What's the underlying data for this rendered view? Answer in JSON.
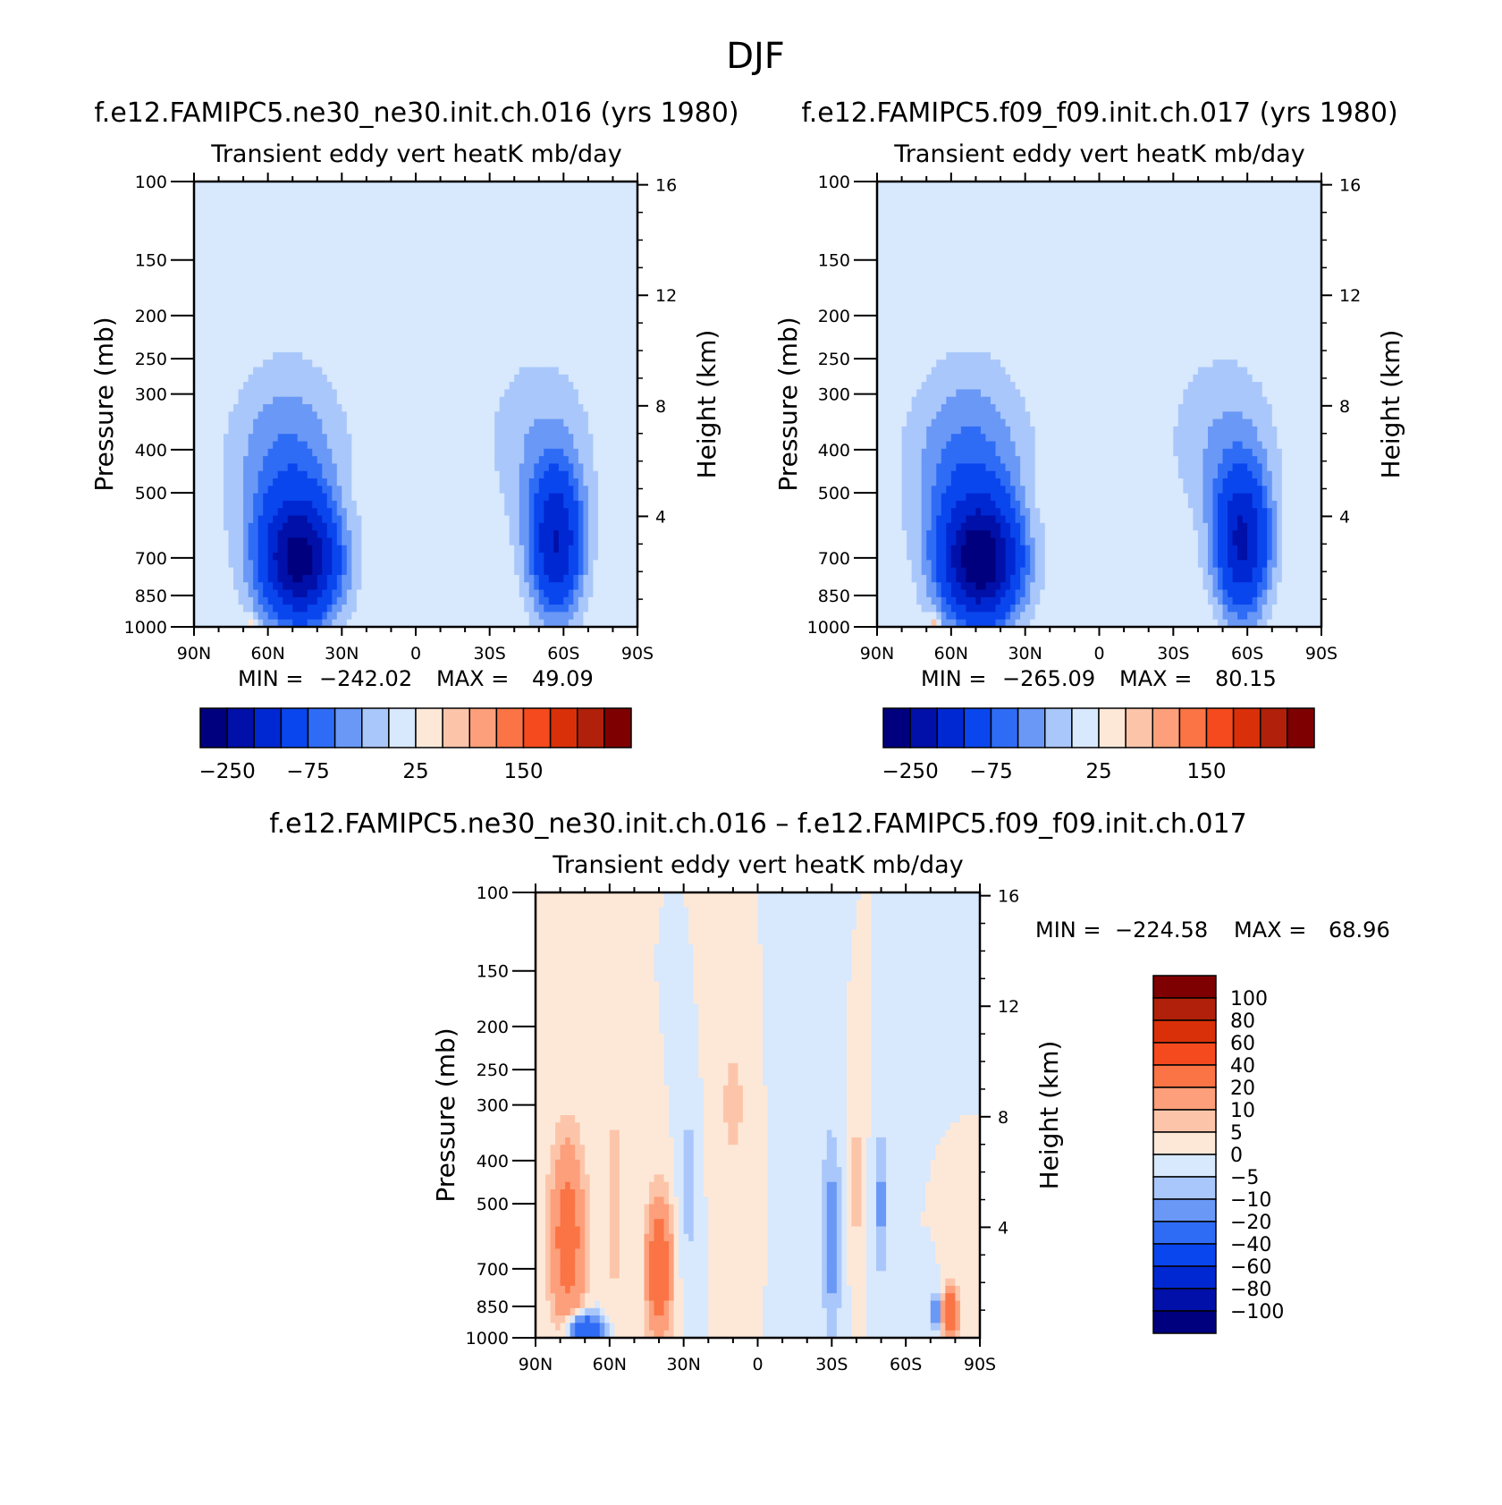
{
  "figure": {
    "title": "DJF"
  },
  "chart_data": [
    {
      "type": "heatmap",
      "title": "f.e12.FAMIPC5.ne30_ne30.init.ch.016 (yrs 1980)",
      "subtitle": "Transient eddy vert heatK mb/day",
      "xlabel": "",
      "ylabel": "Pressure (mb)",
      "y2label": "Height (km)",
      "x_ticks": [
        "90N",
        "60N",
        "30N",
        "0",
        "30S",
        "60S",
        "90S"
      ],
      "x_values": [
        90,
        60,
        30,
        0,
        -30,
        -60,
        -90
      ],
      "y_ticks": [
        100,
        150,
        200,
        250,
        300,
        400,
        500,
        700,
        850,
        1000
      ],
      "y2_ticks": [
        16,
        12,
        8,
        4
      ],
      "ylim": [
        1000,
        100
      ],
      "stats": {
        "min_label": "MIN =",
        "min": "-242.02",
        "max_label": "MAX =",
        "max": "49.09"
      },
      "colorbar": {
        "orientation": "horizontal",
        "tick_labels": [
          "-250",
          "-75",
          "25",
          "150"
        ],
        "colors": [
          "#00007f",
          "#0010a8",
          "#0028d2",
          "#0a46ee",
          "#2f6cf6",
          "#6a98f6",
          "#a9c7fa",
          "#d8e8fd",
          "#fde8d8",
          "#fcc5aa",
          "#fc9f7a",
          "#fa7446",
          "#f54a1e",
          "#d9300a",
          "#b0200a",
          "#7f0000"
        ]
      },
      "features": [
        {
          "lat": 47,
          "p": 720,
          "value": -242,
          "wlat": 16,
          "wlp": 0.32
        },
        {
          "lat": 52,
          "p": 440,
          "value": -80,
          "wlat": 24,
          "wlp": 0.55
        },
        {
          "lat": -57,
          "p": 650,
          "value": -190,
          "wlat": 11,
          "wlp": 0.38
        },
        {
          "lat": -50,
          "p": 380,
          "value": -45,
          "wlat": 24,
          "wlp": 0.5
        },
        {
          "lat": 27,
          "p": 550,
          "value": 10,
          "wlat": 5,
          "wlp": 0.22
        },
        {
          "lat": 66,
          "p": 985,
          "value": 40,
          "wlat": 2,
          "wlp": 0.04
        }
      ]
    },
    {
      "type": "heatmap",
      "title": "f.e12.FAMIPC5.f09_f09.init.ch.017 (yrs 1980)",
      "subtitle": "Transient eddy vert heatK mb/day",
      "xlabel": "",
      "ylabel": "Pressure (mb)",
      "y2label": "Height (km)",
      "x_ticks": [
        "90N",
        "60N",
        "30N",
        "0",
        "30S",
        "60S",
        "90S"
      ],
      "x_values": [
        90,
        60,
        30,
        0,
        -30,
        -60,
        -90
      ],
      "y_ticks": [
        100,
        150,
        200,
        250,
        300,
        400,
        500,
        700,
        850,
        1000
      ],
      "y2_ticks": [
        16,
        12,
        8,
        4
      ],
      "ylim": [
        1000,
        100
      ],
      "stats": {
        "min_label": "MIN =",
        "min": "-265.09",
        "max_label": "MAX =",
        "max": "80.15"
      },
      "colorbar": {
        "orientation": "horizontal",
        "tick_labels": [
          "-250",
          "-75",
          "25",
          "150"
        ],
        "colors": [
          "#00007f",
          "#0010a8",
          "#0028d2",
          "#0a46ee",
          "#2f6cf6",
          "#6a98f6",
          "#a9c7fa",
          "#d8e8fd",
          "#fde8d8",
          "#fcc5aa",
          "#fc9f7a",
          "#fa7446",
          "#f54a1e",
          "#d9300a",
          "#b0200a",
          "#7f0000"
        ]
      },
      "features": [
        {
          "lat": 48,
          "p": 720,
          "value": -265,
          "wlat": 16,
          "wlp": 0.32
        },
        {
          "lat": 53,
          "p": 440,
          "value": -85,
          "wlat": 25,
          "wlp": 0.55
        },
        {
          "lat": -58,
          "p": 650,
          "value": -200,
          "wlat": 11,
          "wlp": 0.38
        },
        {
          "lat": -50,
          "p": 380,
          "value": -48,
          "wlat": 24,
          "wlp": 0.5
        },
        {
          "lat": 27,
          "p": 540,
          "value": 12,
          "wlat": 5,
          "wlp": 0.24
        },
        {
          "lat": 67,
          "p": 985,
          "value": 60,
          "wlat": 2,
          "wlp": 0.04
        }
      ]
    },
    {
      "type": "heatmap",
      "title": "f.e12.FAMIPC5.ne30_ne30.init.ch.016 – f.e12.FAMIPC5.f09_f09.init.ch.017",
      "subtitle": "Transient eddy vert heatK mb/day",
      "xlabel": "",
      "ylabel": "Pressure (mb)",
      "y2label": "Height (km)",
      "x_ticks": [
        "90N",
        "60N",
        "30N",
        "0",
        "30S",
        "60S",
        "90S"
      ],
      "x_values": [
        90,
        60,
        30,
        0,
        -30,
        -60,
        -90
      ],
      "y_ticks": [
        100,
        150,
        200,
        250,
        300,
        400,
        500,
        700,
        850,
        1000
      ],
      "y2_ticks": [
        16,
        12,
        8,
        4
      ],
      "ylim": [
        1000,
        100
      ],
      "stats": {
        "min_label": "MIN =",
        "min": "-224.58",
        "max_label": "MAX =",
        "max": "68.96"
      },
      "colorbar": {
        "orientation": "vertical",
        "tick_labels": [
          "100",
          "80",
          "60",
          "40",
          "20",
          "10",
          "5",
          "0",
          "-5",
          "-10",
          "-20",
          "-40",
          "-60",
          "-80",
          "-100"
        ],
        "colors": [
          "#7f0000",
          "#b0200a",
          "#d9300a",
          "#f54a1e",
          "#fa7446",
          "#fc9f7a",
          "#fcc5aa",
          "#fde8d8",
          "#d8e8fd",
          "#a9c7fa",
          "#6a98f6",
          "#2f6cf6",
          "#0a46ee",
          "#0028d2",
          "#0010a8",
          "#00007f"
        ]
      },
      "features": [
        {
          "lat": 40,
          "p": 700,
          "value": 35,
          "wlat": 5,
          "wlp": 0.35
        },
        {
          "lat": 77,
          "p": 600,
          "value": 28,
          "wlat": 7,
          "wlp": 0.5
        },
        {
          "lat": 58,
          "p": 500,
          "value": 8,
          "wlat": 4,
          "wlp": 0.6
        },
        {
          "lat": 28,
          "p": 450,
          "value": -8,
          "wlat": 4,
          "wlp": 0.45
        },
        {
          "lat": -30,
          "p": 600,
          "value": -14,
          "wlat": 4,
          "wlp": 0.55
        },
        {
          "lat": -40,
          "p": 450,
          "value": 8,
          "wlat": 3,
          "wlp": 0.4
        },
        {
          "lat": -50,
          "p": 500,
          "value": -12,
          "wlat": 3,
          "wlp": 0.4
        },
        {
          "lat": -78,
          "p": 880,
          "value": 40,
          "wlat": 3,
          "wlp": 0.12
        },
        {
          "lat": -72,
          "p": 880,
          "value": -20,
          "wlat": 2,
          "wlp": 0.1
        },
        {
          "lat": 70,
          "p": 960,
          "value": -40,
          "wlat": 7,
          "wlp": 0.08
        },
        {
          "lat": 10,
          "p": 300,
          "value": 6,
          "wlat": 8,
          "wlp": 0.5
        },
        {
          "lat": -15,
          "p": 250,
          "value": -4,
          "wlat": 8,
          "wlp": 0.6
        }
      ]
    }
  ]
}
